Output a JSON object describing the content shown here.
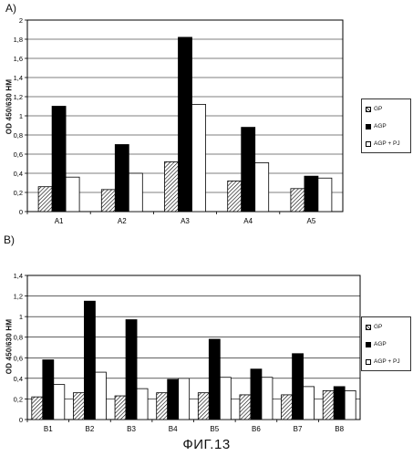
{
  "figure_caption": "ФИГ.13",
  "chart_data": [
    {
      "type": "bar",
      "panel_label": "A)",
      "ylabel": "OD 450/630 HM",
      "ylim": [
        0,
        2
      ],
      "yticks": [
        "0",
        "0,2",
        "0,4",
        "0,6",
        "0,8",
        "1",
        "1,2",
        "1,4",
        "1,6",
        "1,8",
        "2"
      ],
      "grid": "horizontal",
      "legend_position": "right",
      "categories": [
        "A1",
        "A2",
        "A3",
        "A4",
        "A5"
      ],
      "series": [
        {
          "name": "GP",
          "pattern": "hatched",
          "values": [
            0.26,
            0.23,
            0.52,
            0.32,
            0.24
          ]
        },
        {
          "name": "AGP",
          "pattern": "solid",
          "color": "#000000",
          "values": [
            1.1,
            0.7,
            1.82,
            0.88,
            0.37
          ]
        },
        {
          "name": "AGP + PJ",
          "pattern": "white",
          "color": "#ffffff",
          "values": [
            0.36,
            0.4,
            1.12,
            0.51,
            0.35
          ]
        }
      ]
    },
    {
      "type": "bar",
      "panel_label": "B)",
      "ylabel": "OD 450/630 HM",
      "ylim": [
        0,
        1.4
      ],
      "yticks": [
        "0",
        "0,2",
        "0,4",
        "0,6",
        "0,8",
        "1",
        "1,2",
        "1,4"
      ],
      "grid": "horizontal",
      "legend_position": "right",
      "categories": [
        "B1",
        "B2",
        "B3",
        "B4",
        "B5",
        "B6",
        "B7",
        "B8"
      ],
      "series": [
        {
          "name": "GP",
          "pattern": "hatched",
          "values": [
            0.22,
            0.26,
            0.23,
            0.26,
            0.26,
            0.24,
            0.24,
            0.28
          ]
        },
        {
          "name": "AGP",
          "pattern": "solid",
          "color": "#000000",
          "values": [
            0.58,
            1.15,
            0.97,
            0.39,
            0.78,
            0.49,
            0.64,
            0.32
          ]
        },
        {
          "name": "AGP + PJ",
          "pattern": "white",
          "color": "#ffffff",
          "values": [
            0.34,
            0.46,
            0.3,
            0.4,
            0.41,
            0.41,
            0.32,
            0.28
          ]
        }
      ]
    }
  ]
}
